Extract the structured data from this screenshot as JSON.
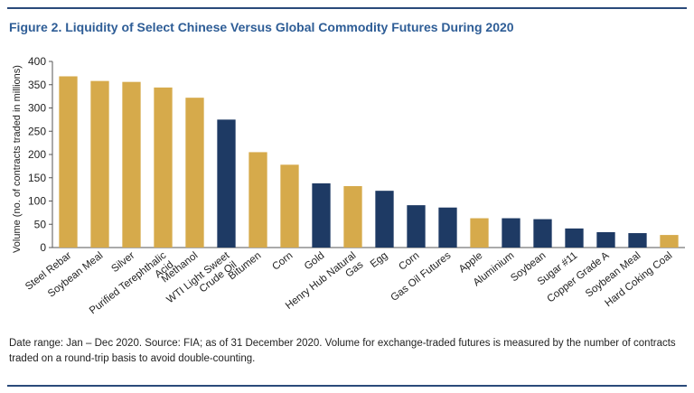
{
  "figure": {
    "title": "Figure 2. Liquidity of Select Chinese Versus Global Commodity Futures During 2020",
    "note": "Date range: Jan – Dec 2020. Source: FIA; as of 31 December 2020. Volume for exchange-traded futures is measured by the number of contracts traded on a round-trip basis to avoid double-counting."
  },
  "colors": {
    "gold": "#d6aa4b",
    "navy": "#1e3a64",
    "rule": "#2a4a7a",
    "title": "#2e5d96"
  },
  "chart_data": {
    "type": "bar",
    "title": "",
    "xlabel": "",
    "ylabel": "Volume (no. of contracts traded in millions)",
    "ylim": [
      0,
      400
    ],
    "yticks": [
      0,
      50,
      100,
      150,
      200,
      250,
      300,
      350,
      400
    ],
    "grid": false,
    "legend": "none",
    "categories": [
      [
        "Steel Rebar"
      ],
      [
        "Soybean Meal"
      ],
      [
        "Silver"
      ],
      [
        "Purified Terephthalic",
        "Acid"
      ],
      [
        "Methanol"
      ],
      [
        "WTI Light Sweet",
        "Crude Oil"
      ],
      [
        "Bitumen"
      ],
      [
        "Corn"
      ],
      [
        "Gold"
      ],
      [
        "Henry Hub Natural",
        "Gas"
      ],
      [
        "Egg"
      ],
      [
        "Corn"
      ],
      [
        "Gas Oil Futures"
      ],
      [
        "Apple"
      ],
      [
        "Aluminium"
      ],
      [
        "Soybean"
      ],
      [
        "Sugar #11"
      ],
      [
        "Copper Grade A"
      ],
      [
        "Soybean Meal"
      ],
      [
        "Hard Coking Coal"
      ]
    ],
    "values": [
      368,
      358,
      356,
      344,
      322,
      275,
      205,
      178,
      138,
      132,
      122,
      91,
      86,
      63,
      63,
      61,
      41,
      33,
      31,
      27
    ],
    "bar_colors": [
      "gold",
      "gold",
      "gold",
      "gold",
      "gold",
      "navy",
      "gold",
      "gold",
      "navy",
      "gold",
      "navy",
      "navy",
      "navy",
      "gold",
      "navy",
      "navy",
      "navy",
      "navy",
      "navy",
      "gold"
    ]
  }
}
